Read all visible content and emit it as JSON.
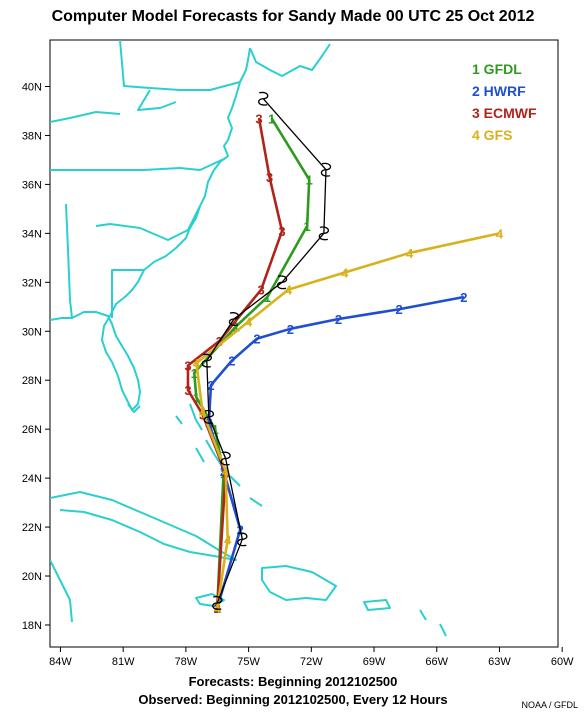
{
  "title": "Computer Model Forecasts for Sandy Made 00 UTC 25 Oct 2012",
  "footer": {
    "forecasts": "Forecasts: Beginning 2012102500",
    "observed": "Observed: Beginning 2012102500, Every 12 Hours"
  },
  "credit": "NOAA / GFDL",
  "colors": {
    "coast": "#2bcfcf",
    "gfdl": "#2e9a1e",
    "hwrf": "#1f4fd0",
    "ecmwf": "#b22418",
    "gfs": "#d8b21c",
    "observed": "#000000"
  },
  "axes": {
    "lon_ticks": [
      "84W",
      "81W",
      "78W",
      "75W",
      "72W",
      "69W",
      "66W",
      "63W",
      "60W"
    ],
    "lon_values": [
      -84,
      -81,
      -78,
      -75,
      -72,
      -69,
      -66,
      -63,
      -60
    ],
    "lat_ticks": [
      "40N",
      "38N",
      "36N",
      "34N",
      "32N",
      "30N",
      "28N",
      "26N",
      "24N",
      "22N",
      "20N",
      "18N"
    ],
    "lat_values": [
      40,
      38,
      36,
      34,
      32,
      30,
      28,
      26,
      24,
      22,
      20,
      18
    ],
    "lon_range": [
      -84,
      -60
    ],
    "lat_range": [
      17,
      42
    ]
  },
  "legend": [
    {
      "label": "1 GFDL",
      "color": "#2e9a1e"
    },
    {
      "label": "2 HWRF",
      "color": "#1f4fd0"
    },
    {
      "label": "3 ECMWF",
      "color": "#b22418"
    },
    {
      "label": "4 GFS",
      "color": "#d8b21c"
    }
  ],
  "chart_data": {
    "type": "line",
    "title": "Computer Model Forecasts for Sandy Made 00 UTC 25 Oct 2012",
    "xlabel": "",
    "ylabel": "",
    "xlim": [
      -84,
      -60
    ],
    "ylim": [
      17,
      42
    ],
    "series": [
      {
        "name": "1 GFDL",
        "marker": "1",
        "color": "#2e9a1e",
        "points": [
          [
            -76.5,
            18.7
          ],
          [
            -76.2,
            24.2
          ],
          [
            -76.6,
            26.0
          ],
          [
            -77.5,
            27.3
          ],
          [
            -77.6,
            28.3
          ],
          [
            -75.6,
            30.2
          ],
          [
            -74.1,
            31.4
          ],
          [
            -72.2,
            34.3
          ],
          [
            -72.1,
            36.2
          ],
          [
            -73.9,
            38.7
          ]
        ]
      },
      {
        "name": "2 HWRF",
        "marker": "2",
        "color": "#1f4fd0",
        "points": [
          [
            -76.5,
            18.7
          ],
          [
            -75.4,
            21.9
          ],
          [
            -76.2,
            24.3
          ],
          [
            -76.9,
            26.3
          ],
          [
            -76.8,
            27.8
          ],
          [
            -75.8,
            28.8
          ],
          [
            -74.6,
            29.7
          ],
          [
            -73.0,
            30.1
          ],
          [
            -70.7,
            30.5
          ],
          [
            -67.8,
            30.9
          ],
          [
            -64.7,
            31.4
          ]
        ]
      },
      {
        "name": "3 ECMWF",
        "marker": "3",
        "color": "#b22418",
        "points": [
          [
            -76.5,
            18.7
          ],
          [
            -76.1,
            24.2
          ],
          [
            -77.2,
            26.6
          ],
          [
            -77.9,
            27.6
          ],
          [
            -77.9,
            28.6
          ],
          [
            -76.4,
            29.6
          ],
          [
            -74.4,
            31.7
          ],
          [
            -73.4,
            34.1
          ],
          [
            -74.0,
            36.3
          ],
          [
            -74.5,
            38.7
          ]
        ]
      },
      {
        "name": "4 GFS",
        "marker": "4",
        "color": "#d8b21c",
        "points": [
          [
            -76.5,
            18.7
          ],
          [
            -76.0,
            21.5
          ],
          [
            -76.1,
            24.3
          ],
          [
            -77.2,
            26.7
          ],
          [
            -77.5,
            28.7
          ],
          [
            -75.0,
            30.4
          ],
          [
            -73.1,
            31.7
          ],
          [
            -70.4,
            32.4
          ],
          [
            -67.3,
            33.2
          ],
          [
            -63.0,
            34.0
          ]
        ]
      },
      {
        "name": "Observed",
        "marker": "hurricane",
        "color": "#000000",
        "points": [
          [
            -76.5,
            18.9
          ],
          [
            -75.3,
            21.5
          ],
          [
            -76.1,
            24.8
          ],
          [
            -76.9,
            26.5
          ],
          [
            -77.0,
            28.8
          ],
          [
            -75.7,
            30.5
          ],
          [
            -73.4,
            32.0
          ],
          [
            -71.4,
            34.0
          ],
          [
            -71.3,
            36.6
          ],
          [
            -74.3,
            39.5
          ]
        ]
      }
    ]
  }
}
